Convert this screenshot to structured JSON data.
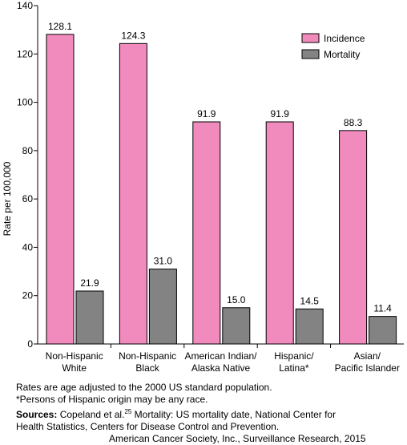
{
  "chart_data": {
    "type": "bar",
    "title": "",
    "ylabel": "Rate per 100,000",
    "xlabel": "",
    "ylim": [
      0,
      140
    ],
    "yticks": [
      0,
      20,
      40,
      60,
      80,
      100,
      120,
      140
    ],
    "categories": [
      [
        "Non-Hispanic",
        "White"
      ],
      [
        "Non-Hispanic",
        "Black"
      ],
      [
        "American Indian/",
        "Alaska Native"
      ],
      [
        "Hispanic/",
        "Latina*"
      ],
      [
        "Asian/",
        "Pacific Islander"
      ]
    ],
    "series": [
      {
        "name": "Incidence",
        "color": "#f28bbd",
        "values": [
          128.1,
          124.3,
          91.9,
          91.9,
          88.3
        ],
        "labels": [
          "128.1",
          "124.3",
          "91.9",
          "91.9",
          "88.3"
        ]
      },
      {
        "name": "Mortality",
        "color": "#838383",
        "values": [
          21.9,
          31.0,
          15.0,
          14.5,
          11.4
        ],
        "labels": [
          "21.9",
          "31.0",
          "15.0",
          "14.5",
          "11.4"
        ]
      }
    ],
    "legend_position": "top-right",
    "grid": false
  },
  "notes": {
    "line1": "Rates are age adjusted to the 2000 US standard population.",
    "line2": "*Persons of Hispanic origin may be any race.",
    "sources_label": "Sources:",
    "sources_text1": "Copeland et al.",
    "sources_ref": "25",
    "sources_text2": " Mortality: US mortality date, National Center for",
    "line4": "Health Statistics, Centers for Disease Control and Prevention.",
    "line5": "American Cancer Society, Inc., Surveillance Research, 2015"
  }
}
